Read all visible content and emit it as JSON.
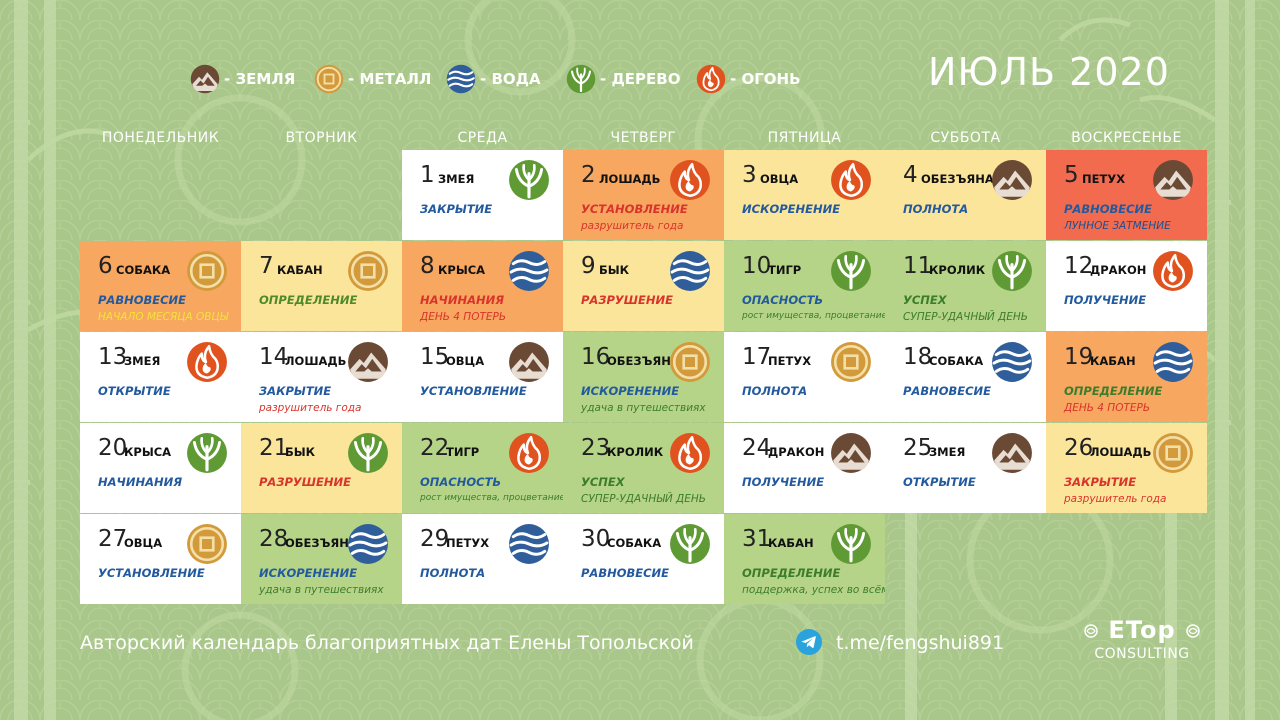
{
  "title": "ИЮЛЬ 2020",
  "colors": {
    "background": "#a9c78a",
    "white": "#ffffff",
    "orange": "#f7a760",
    "yellow": "#fbe59b",
    "green": "#b6d488",
    "red": "#f36b4f",
    "status_blue": "#235a9e"
  },
  "legend": [
    {
      "element": "earth",
      "icon": "earth-mountain-icon",
      "label": "- ЗЕМЛЯ"
    },
    {
      "element": "metal",
      "icon": "metal-coin-icon",
      "label": "- МЕТАЛЛ"
    },
    {
      "element": "water",
      "icon": "water-wave-icon",
      "label": "- ВОДА"
    },
    {
      "element": "wood",
      "icon": "wood-tree-icon",
      "label": "- ДЕРЕВО"
    },
    {
      "element": "fire",
      "icon": "fire-flame-icon",
      "label": "- ОГОНЬ"
    }
  ],
  "weekdays": [
    "ПОНЕДЕЛЬНИК",
    "ВТОРНИК",
    "СРЕДА",
    "ЧЕТВЕРГ",
    "ПЯТНИЦА",
    "СУББОТА",
    "ВОСКРЕСЕНЬЕ"
  ],
  "days": [
    {
      "day": "1",
      "animal": "ЗМЕЯ",
      "element": "wood",
      "bg": "white",
      "status": "ЗАКРЫТИЕ",
      "note": ""
    },
    {
      "day": "2",
      "animal": "ЛОШАДЬ",
      "element": "fire",
      "bg": "orange",
      "status": "УСТАНОВЛЕНИЕ",
      "note": "разрушитель года",
      "note_color": "red"
    },
    {
      "day": "3",
      "animal": "ОВЦА",
      "element": "fire",
      "bg": "yellow",
      "status": "ИСКОРЕНЕНИЕ",
      "note": ""
    },
    {
      "day": "4",
      "animal": "ОБЕЗЪЯНА",
      "element": "earth",
      "bg": "yellow",
      "status": "ПОЛНОТА",
      "note": ""
    },
    {
      "day": "5",
      "animal": "ПЕТУХ",
      "element": "earth",
      "bg": "red",
      "status": "РАВНОВЕСИЕ",
      "note": "ЛУННОЕ ЗАТМЕНИЕ",
      "note_color": "blue"
    },
    {
      "day": "6",
      "animal": "СОБАКА",
      "element": "metal",
      "bg": "orange",
      "status": "РАВНОВЕСИЕ",
      "note": "НАЧАЛО МЕСЯЦА ОВЦЫ",
      "note_color": "yellow"
    },
    {
      "day": "7",
      "animal": "КАБАН",
      "element": "metal",
      "bg": "yellow",
      "status": "ОПРЕДЕЛЕНИЕ",
      "note": ""
    },
    {
      "day": "8",
      "animal": "КРЫСА",
      "element": "water",
      "bg": "orange",
      "status": "НАЧИНАНИЯ",
      "note": "ДЕНЬ 4 ПОТЕРЬ",
      "note_color": "red"
    },
    {
      "day": "9",
      "animal": "БЫК",
      "element": "water",
      "bg": "yellow",
      "status": "РАЗРУШЕНИЕ",
      "note": ""
    },
    {
      "day": "10",
      "animal": "ТИГР",
      "element": "wood",
      "bg": "green",
      "status": "ОПАСНОСТЬ",
      "note": "рост имущества, процветание",
      "note_color": "green",
      "note_small": true
    },
    {
      "day": "11",
      "animal": "КРОЛИК",
      "element": "wood",
      "bg": "green",
      "status": "УСПЕХ",
      "note": "СУПЕР-УДАЧНЫЙ ДЕНЬ",
      "note_color": "green"
    },
    {
      "day": "12",
      "animal": "ДРАКОН",
      "element": "fire",
      "bg": "white",
      "status": "ПОЛУЧЕНИЕ",
      "note": ""
    },
    {
      "day": "13",
      "animal": "ЗМЕЯ",
      "element": "fire",
      "bg": "white",
      "status": "ОТКРЫТИЕ",
      "note": ""
    },
    {
      "day": "14",
      "animal": "ЛОШАДЬ",
      "element": "earth",
      "bg": "white",
      "status": "ЗАКРЫТИЕ",
      "note": "разрушитель года",
      "note_color": "red"
    },
    {
      "day": "15",
      "animal": "ОВЦА",
      "element": "earth",
      "bg": "white",
      "status": "УСТАНОВЛЕНИЕ",
      "note": ""
    },
    {
      "day": "16",
      "animal": "ОБЕЗЪЯНА",
      "element": "metal",
      "bg": "green",
      "status": "ИСКОРЕНЕНИЕ",
      "note": "удача в путешествиях",
      "note_color": "green"
    },
    {
      "day": "17",
      "animal": "ПЕТУХ",
      "element": "metal",
      "bg": "white",
      "status": "ПОЛНОТА",
      "note": ""
    },
    {
      "day": "18",
      "animal": "СОБАКА",
      "element": "water",
      "bg": "white",
      "status": "РАВНОВЕСИЕ",
      "note": ""
    },
    {
      "day": "19",
      "animal": "КАБАН",
      "element": "water",
      "bg": "orange",
      "status": "ОПРЕДЕЛЕНИЕ",
      "note": "ДЕНЬ 4 ПОТЕРЬ",
      "note_color": "red"
    },
    {
      "day": "20",
      "animal": "КРЫСА",
      "element": "wood",
      "bg": "white",
      "status": "НАЧИНАНИЯ",
      "note": ""
    },
    {
      "day": "21",
      "animal": "БЫК",
      "element": "wood",
      "bg": "yellow",
      "status": "РАЗРУШЕНИЕ",
      "note": ""
    },
    {
      "day": "22",
      "animal": "ТИГР",
      "element": "fire",
      "bg": "green",
      "status": "ОПАСНОСТЬ",
      "note": "рост имущества, процветание",
      "note_color": "green",
      "note_small": true
    },
    {
      "day": "23",
      "animal": "КРОЛИК",
      "element": "fire",
      "bg": "green",
      "status": "УСПЕХ",
      "note": "СУПЕР-УДАЧНЫЙ ДЕНЬ",
      "note_color": "green"
    },
    {
      "day": "24",
      "animal": "ДРАКОН",
      "element": "earth",
      "bg": "white",
      "status": "ПОЛУЧЕНИЕ",
      "note": ""
    },
    {
      "day": "25",
      "animal": "ЗМЕЯ",
      "element": "earth",
      "bg": "white",
      "status": "ОТКРЫТИЕ",
      "note": ""
    },
    {
      "day": "26",
      "animal": "ЛОШАДЬ",
      "element": "metal",
      "bg": "yellow",
      "status": "ЗАКРЫТИЕ",
      "note": "разрушитель года",
      "note_color": "red"
    },
    {
      "day": "27",
      "animal": "ОВЦА",
      "element": "metal",
      "bg": "white",
      "status": "УСТАНОВЛЕНИЕ",
      "note": ""
    },
    {
      "day": "28",
      "animal": "ОБЕЗЪЯНА",
      "element": "water",
      "bg": "green",
      "status": "ИСКОРЕНЕНИЕ",
      "note": "удача в путешествиях",
      "note_color": "green"
    },
    {
      "day": "29",
      "animal": "ПЕТУХ",
      "element": "water",
      "bg": "white",
      "status": "ПОЛНОТА",
      "note": ""
    },
    {
      "day": "30",
      "animal": "СОБАКА",
      "element": "wood",
      "bg": "white",
      "status": "РАВНОВЕСИЕ",
      "note": ""
    },
    {
      "day": "31",
      "animal": "КАБАН",
      "element": "wood",
      "bg": "green",
      "status": "ОПРЕДЕЛЕНИЕ",
      "note": "поддержка, успех во всём",
      "note_color": "green"
    }
  ],
  "footer": {
    "text": "Авторский календарь благоприятных дат Елены Топольской",
    "link": "t.me/fengshui891",
    "link_icon": "telegram-icon"
  },
  "logo": {
    "brand": "ETop",
    "sub": "CONSULTING"
  }
}
